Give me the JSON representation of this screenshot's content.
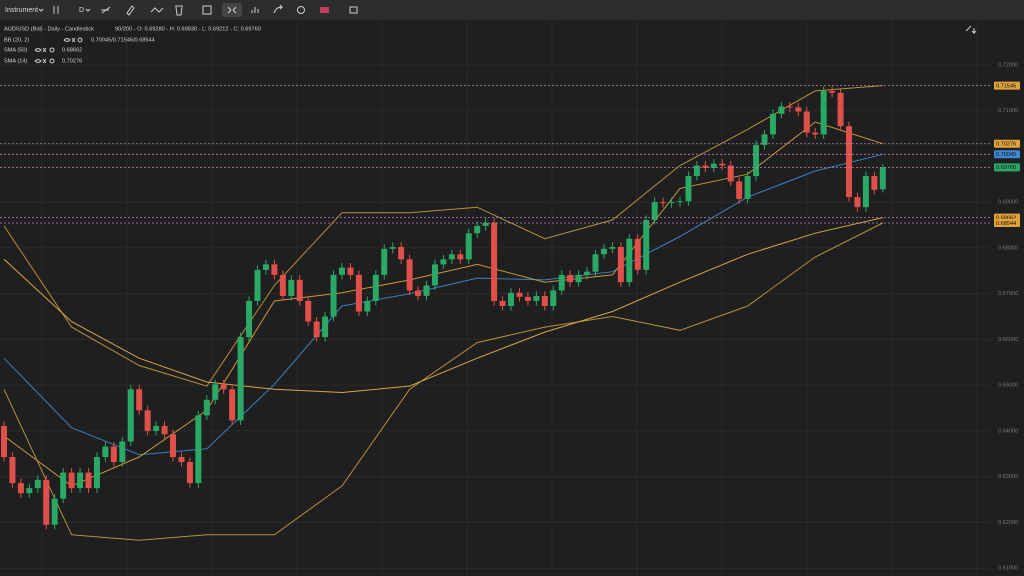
{
  "toolbar": {
    "instrument": "Instrument",
    "interval": "D"
  },
  "legend": {
    "title": "AUD/USD (Bid) - Daily - Candlestick",
    "quote": "90/200 - O: 0.69280 - H: 0.69830 - L: 0.69212 - C: 0.69760",
    "indicators": [
      {
        "name": "BB (20, 2)",
        "value": "0.70045/0.71546/0.68544"
      },
      {
        "name": "SMA (50)",
        "value": "0.68662"
      },
      {
        "name": "SMA (14)",
        "value": "0.70276"
      }
    ]
  },
  "chart_data": {
    "type": "candlestick",
    "up_color": "#2aa866",
    "down_color": "#e0504a",
    "open": [
      0.6411,
      0.6343,
      0.6286,
      0.6264,
      0.6275,
      0.6293,
      0.6195,
      0.6252,
      0.6309,
      0.6275,
      0.6309,
      0.6275,
      0.6343,
      0.6366,
      0.6332,
      0.6377,
      0.6491,
      0.6445,
      0.64,
      0.6411,
      0.6393,
      0.6343,
      0.6332,
      0.6286,
      0.6434,
      0.6468,
      0.6502,
      0.6491,
      0.6423,
      0.6605,
      0.6684,
      0.6752,
      0.6764,
      0.6741,
      0.6695,
      0.673,
      0.6684,
      0.6639,
      0.6605,
      0.665,
      0.6741,
      0.6757,
      0.6741,
      0.6661,
      0.6684,
      0.6741,
      0.6798,
      0.6802,
      0.6775,
      0.6707,
      0.6695,
      0.6718,
      0.6764,
      0.6775,
      0.6786,
      0.6775,
      0.6832,
      0.6848,
      0.6855,
      0.6684,
      0.6673,
      0.6702,
      0.6693,
      0.6684,
      0.6695,
      0.6673,
      0.6707,
      0.6741,
      0.6725,
      0.6741,
      0.6748,
      0.6786,
      0.6798,
      0.6802,
      0.6725,
      0.682,
      0.6752,
      0.6861,
      0.69,
      0.6898,
      0.69,
      0.6902,
      0.6957,
      0.698,
      0.6975,
      0.6984,
      0.698,
      0.6945,
      0.6907,
      0.6957,
      0.7025,
      0.7048,
      0.7093,
      0.7109,
      0.7107,
      0.7098,
      0.7052,
      0.7048,
      0.7143,
      0.7139,
      0.7066,
      0.6911,
      0.6889,
      0.6957,
      0.6928
    ],
    "high": [
      0.6421,
      0.6353,
      0.6296,
      0.6285,
      0.6303,
      0.6303,
      0.6262,
      0.6319,
      0.6319,
      0.6319,
      0.6319,
      0.6353,
      0.6376,
      0.6376,
      0.6387,
      0.6501,
      0.6501,
      0.6455,
      0.6421,
      0.6421,
      0.6403,
      0.6353,
      0.6342,
      0.6444,
      0.6478,
      0.6512,
      0.6512,
      0.6501,
      0.6615,
      0.6694,
      0.6762,
      0.6774,
      0.6774,
      0.6751,
      0.674,
      0.674,
      0.6694,
      0.6649,
      0.666,
      0.6751,
      0.6767,
      0.6767,
      0.6751,
      0.6694,
      0.6751,
      0.6808,
      0.6812,
      0.6812,
      0.6785,
      0.6717,
      0.6728,
      0.6774,
      0.6785,
      0.6796,
      0.6796,
      0.6842,
      0.6858,
      0.6865,
      0.6865,
      0.6694,
      0.6712,
      0.6712,
      0.6703,
      0.6705,
      0.6705,
      0.6717,
      0.6751,
      0.6751,
      0.6751,
      0.6758,
      0.6796,
      0.6808,
      0.6812,
      0.6812,
      0.683,
      0.683,
      0.6871,
      0.691,
      0.691,
      0.691,
      0.6912,
      0.6967,
      0.699,
      0.699,
      0.6994,
      0.6994,
      0.699,
      0.6955,
      0.6967,
      0.7035,
      0.7058,
      0.7103,
      0.7119,
      0.7119,
      0.7117,
      0.7108,
      0.7062,
      0.7153,
      0.7153,
      0.7149,
      0.7076,
      0.6921,
      0.6967,
      0.6967,
      0.6983
    ],
    "low": [
      0.6333,
      0.6276,
      0.6254,
      0.6254,
      0.6265,
      0.6185,
      0.6185,
      0.6242,
      0.6265,
      0.6265,
      0.6265,
      0.6265,
      0.6333,
      0.6322,
      0.6322,
      0.6367,
      0.6435,
      0.639,
      0.639,
      0.6383,
      0.6333,
      0.6322,
      0.6276,
      0.6276,
      0.6424,
      0.6458,
      0.6481,
      0.6413,
      0.6413,
      0.6595,
      0.6674,
      0.6742,
      0.6731,
      0.6685,
      0.6685,
      0.6674,
      0.6629,
      0.6595,
      0.6595,
      0.664,
      0.6731,
      0.6731,
      0.6651,
      0.6651,
      0.6674,
      0.6731,
      0.6788,
      0.6765,
      0.6697,
      0.6685,
      0.6685,
      0.6708,
      0.6754,
      0.6765,
      0.6765,
      0.6765,
      0.6822,
      0.6838,
      0.6674,
      0.6663,
      0.6663,
      0.6683,
      0.6674,
      0.6674,
      0.6663,
      0.6663,
      0.6697,
      0.6715,
      0.6715,
      0.6731,
      0.6738,
      0.6776,
      0.6788,
      0.6715,
      0.6715,
      0.6742,
      0.6742,
      0.6851,
      0.6888,
      0.6888,
      0.689,
      0.6892,
      0.6947,
      0.6965,
      0.6965,
      0.697,
      0.6935,
      0.6897,
      0.6897,
      0.6947,
      0.7015,
      0.7038,
      0.7083,
      0.7097,
      0.7088,
      0.7042,
      0.7038,
      0.7038,
      0.7129,
      0.7056,
      0.6901,
      0.6879,
      0.6879,
      0.6917,
      0.6921
    ],
    "close": [
      0.6343,
      0.6286,
      0.6264,
      0.6275,
      0.6293,
      0.6195,
      0.6252,
      0.6309,
      0.6275,
      0.6309,
      0.6275,
      0.6343,
      0.6366,
      0.6332,
      0.6377,
      0.6491,
      0.6445,
      0.64,
      0.6411,
      0.6393,
      0.6343,
      0.6332,
      0.6286,
      0.6434,
      0.6468,
      0.6502,
      0.6491,
      0.6423,
      0.6605,
      0.6684,
      0.6752,
      0.6764,
      0.6741,
      0.6695,
      0.673,
      0.6684,
      0.6639,
      0.6605,
      0.665,
      0.6741,
      0.6757,
      0.6741,
      0.6661,
      0.6684,
      0.6741,
      0.6798,
      0.6802,
      0.6775,
      0.6707,
      0.6695,
      0.6718,
      0.6764,
      0.6775,
      0.6786,
      0.6775,
      0.6832,
      0.6848,
      0.6855,
      0.6684,
      0.6673,
      0.6702,
      0.6693,
      0.6684,
      0.6695,
      0.6673,
      0.6707,
      0.6741,
      0.6725,
      0.6741,
      0.6748,
      0.6786,
      0.6798,
      0.6802,
      0.6725,
      0.682,
      0.6752,
      0.6861,
      0.69,
      0.6898,
      0.69,
      0.6902,
      0.6957,
      0.698,
      0.6975,
      0.6984,
      0.698,
      0.6945,
      0.6907,
      0.6957,
      0.7025,
      0.7048,
      0.7093,
      0.7109,
      0.7107,
      0.7098,
      0.7052,
      0.7048,
      0.7143,
      0.7139,
      0.7066,
      0.6911,
      0.6889,
      0.6957,
      0.6927,
      0.6976
    ],
    "line_x": [
      0,
      8,
      16,
      24,
      32,
      40,
      48,
      56,
      64,
      72,
      80,
      88,
      96,
      104
    ],
    "lines": [
      {
        "color": "#b8903e",
        "values": [
          0.6848,
          0.6627,
          0.6543,
          0.6498,
          0.6718,
          0.6877,
          0.6877,
          0.6889,
          0.682,
          0.6861,
          0.698,
          0.7059,
          0.7143,
          0.71546
        ]
      },
      {
        "color": "#3d7fc4",
        "values": [
          0.6559,
          0.6407,
          0.6348,
          0.6361,
          0.6502,
          0.6673,
          0.67,
          0.6734,
          0.673,
          0.6748,
          0.6825,
          0.6911,
          0.6968,
          0.70045
        ]
      },
      {
        "color": "#b8903e",
        "values": [
          0.6491,
          0.6173,
          0.6161,
          0.6173,
          0.6173,
          0.628,
          0.6491,
          0.6593,
          0.6627,
          0.665,
          0.662,
          0.6673,
          0.678,
          0.68544
        ]
      },
      {
        "color": "#d4a64a",
        "values": [
          0.6775,
          0.6639,
          0.6559,
          0.6507,
          0.6491,
          0.6484,
          0.6498,
          0.6559,
          0.6616,
          0.6661,
          0.6725,
          0.6786,
          0.6832,
          0.68662
        ]
      },
      {
        "color": "#c9973a",
        "values": [
          0.6389,
          0.628,
          0.6343,
          0.6445,
          0.6684,
          0.6702,
          0.673,
          0.6764,
          0.6725,
          0.6741,
          0.693,
          0.6961,
          0.7075,
          0.70276
        ]
      }
    ],
    "price_labels": [
      {
        "value": 0.71546,
        "label": "0.71546",
        "color": "#e3a33b"
      },
      {
        "value": 0.70276,
        "label": "0.70276",
        "color": "#e3a33b"
      },
      {
        "value": 0.70045,
        "label": "0.70045",
        "color": "#3d86d6"
      },
      {
        "value": 0.6976,
        "label": "0.69760",
        "color": "#2aa866"
      },
      {
        "value": 0.68662,
        "label": "0.68662",
        "color": "#e3a33b"
      },
      {
        "value": 0.68544,
        "label": "0.68544",
        "color": "#e3a33b"
      }
    ],
    "ylim": [
      0.6083,
      0.7298
    ],
    "yticks": [
      {
        "value": 0.61,
        "label": "0.61000"
      },
      {
        "value": 0.62,
        "label": "0.62000"
      },
      {
        "value": 0.63,
        "label": "0.63000"
      },
      {
        "value": 0.64,
        "label": "0.64000"
      },
      {
        "value": 0.65,
        "label": "0.65000"
      },
      {
        "value": 0.66,
        "label": "0.66000"
      },
      {
        "value": 0.67,
        "label": "0.67000"
      },
      {
        "value": 0.68,
        "label": "0.68000"
      },
      {
        "value": 0.69,
        "label": "0.69000"
      },
      {
        "value": 0.71,
        "label": "0.71000"
      },
      {
        "value": 0.72,
        "label": "0.72000"
      }
    ],
    "grid": true
  }
}
